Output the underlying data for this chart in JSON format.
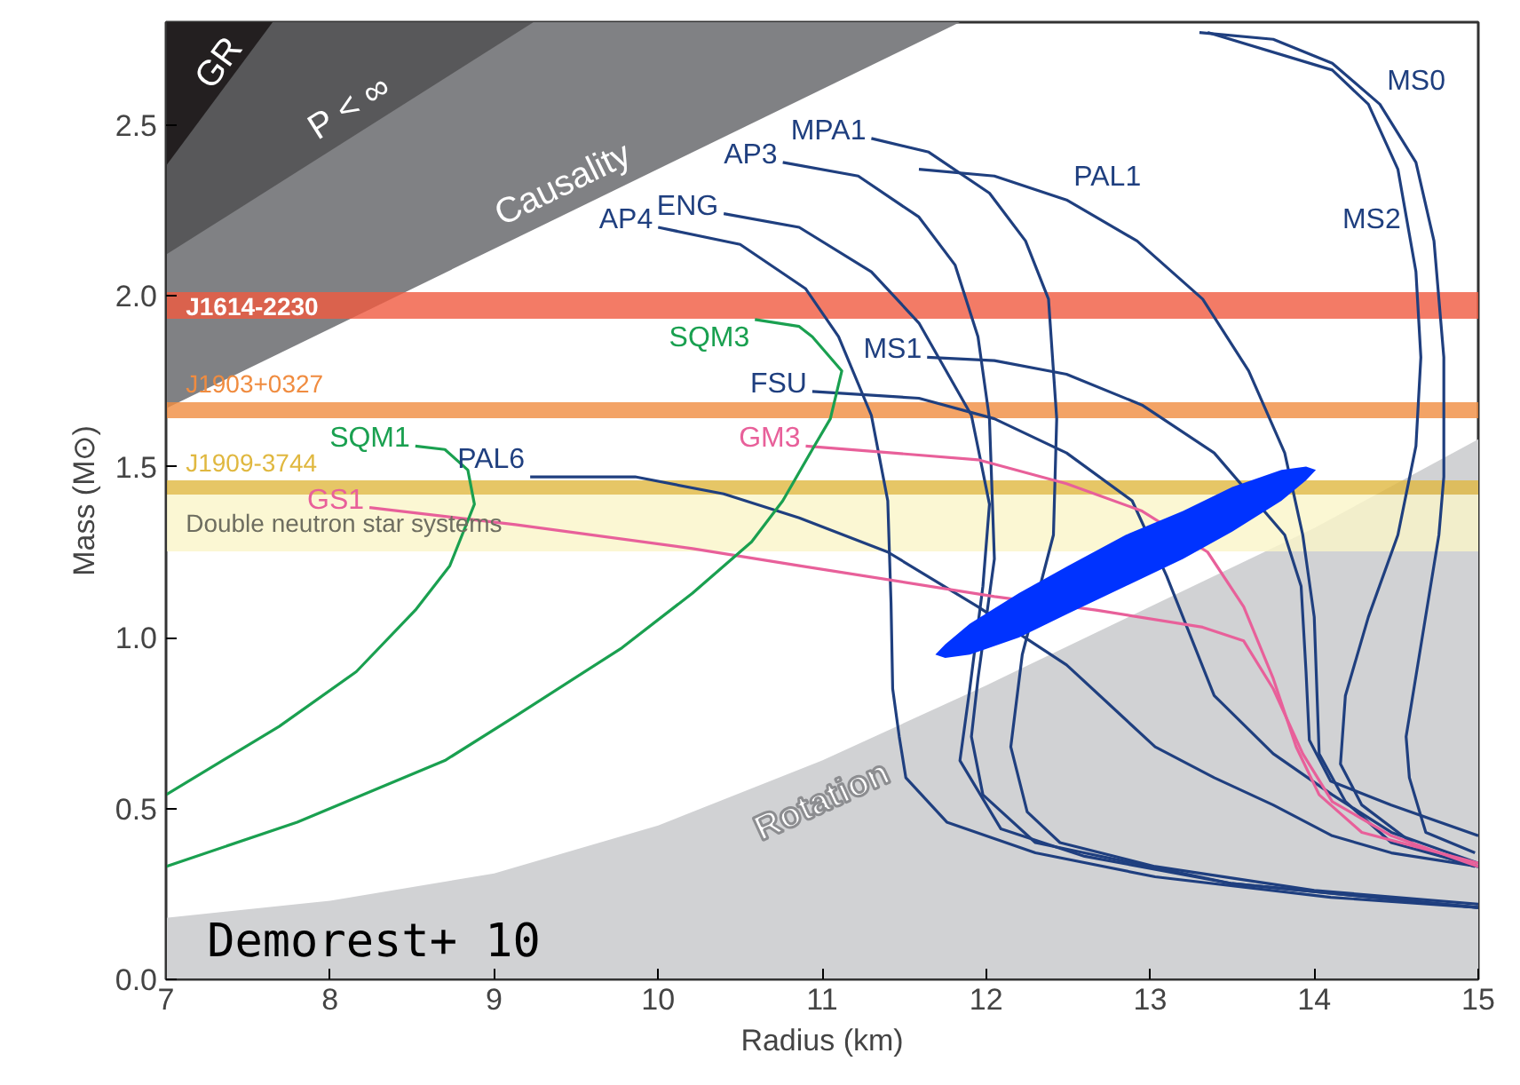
{
  "chart_data": {
    "type": "line",
    "xlabel": "Radius (km)",
    "ylabel": "Mass (M⊙)",
    "xlim": [
      7,
      15
    ],
    "ylim": [
      0,
      2.8
    ],
    "xticks": [
      7,
      8,
      9,
      10,
      11,
      12,
      13,
      14,
      15
    ],
    "yticks": [
      {
        "value": 0,
        "label": "0.0"
      },
      {
        "value": 0.5,
        "label": "0.5"
      },
      {
        "value": 1,
        "label": "1.0"
      },
      {
        "value": 1.5,
        "label": "1.5"
      },
      {
        "value": 2,
        "label": "2.0"
      },
      {
        "value": 2.5,
        "label": "2.5"
      }
    ],
    "series": [
      {
        "type": "area",
        "name": "Causality",
        "color": "#808184",
        "x": [
          7,
          11.84
        ],
        "values": [
          1.67,
          2.8
        ]
      },
      {
        "type": "area",
        "name": "P < ∞",
        "color": "#58585a",
        "x": [
          7,
          9.24
        ],
        "values": [
          2.12,
          2.8
        ]
      },
      {
        "type": "area",
        "name": "GR",
        "color": "#231f20",
        "x": [
          7,
          7.65
        ],
        "values": [
          2.38,
          2.8
        ]
      },
      {
        "type": "area",
        "name": "Rotation",
        "color": "#d1d2d4",
        "x": [
          7,
          8,
          9,
          10,
          11,
          12,
          13,
          14,
          15
        ],
        "values": [
          0.18,
          0.23,
          0.31,
          0.45,
          0.64,
          0.86,
          1.09,
          1.32,
          1.58
        ]
      },
      {
        "color": "#1f3f7f",
        "x": [
          10.0,
          10.5,
          10.9,
          11.1,
          11.3,
          11.4,
          11.42,
          11.43,
          11.47,
          11.51,
          11.76,
          12.3,
          13.03,
          14.1,
          15
        ],
        "values": [
          2.2,
          2.15,
          2.02,
          1.88,
          1.65,
          1.4,
          1.1,
          0.85,
          0.71,
          0.59,
          0.46,
          0.37,
          0.3,
          0.24,
          0.21
        ]
      },
      {
        "color": "#1f3f7f",
        "x": [
          10.4,
          10.86,
          11.3,
          11.59,
          11.91,
          12.02,
          11.98,
          11.9,
          11.84,
          12.09,
          12.6,
          13.5,
          15
        ],
        "values": [
          2.24,
          2.2,
          2.07,
          1.92,
          1.65,
          1.39,
          1.15,
          0.85,
          0.64,
          0.44,
          0.36,
          0.28,
          0.21
        ]
      },
      {
        "color": "#1f3f7f",
        "x": [
          10.76,
          11.22,
          11.59,
          11.81,
          11.95,
          12.02,
          12.05,
          11.95,
          11.91,
          11.98,
          12.3,
          13.5,
          15
        ],
        "values": [
          2.39,
          2.35,
          2.23,
          2.09,
          1.88,
          1.64,
          1.23,
          0.88,
          0.71,
          0.54,
          0.4,
          0.28,
          0.21
        ]
      },
      {
        "color": "#1f3f7f",
        "x": [
          11.3,
          11.65,
          12.02,
          12.24,
          12.38,
          12.43,
          12.41,
          12.22,
          12.15,
          12.25,
          12.45,
          13.03,
          14,
          15
        ],
        "values": [
          2.46,
          2.42,
          2.3,
          2.16,
          1.99,
          1.64,
          1.3,
          0.95,
          0.68,
          0.49,
          0.4,
          0.33,
          0.26,
          0.22
        ]
      },
      {
        "color": "#1f3f7f",
        "x": [
          11.59,
          12.05,
          12.49,
          12.92,
          13.32,
          13.6,
          13.82,
          13.93,
          14.0,
          14.03,
          14.19,
          14.47,
          15
        ],
        "values": [
          2.37,
          2.35,
          2.28,
          2.16,
          1.99,
          1.78,
          1.54,
          1.3,
          1.06,
          0.66,
          0.52,
          0.4,
          0.33
        ]
      },
      {
        "color": "#1f3f7f",
        "x": [
          13.3,
          13.75,
          14.11,
          14.4,
          14.62,
          14.73,
          14.79,
          14.79,
          14.76,
          14.56,
          14.58,
          14.68,
          14.98
        ],
        "values": [
          2.77,
          2.75,
          2.68,
          2.56,
          2.39,
          2.16,
          1.82,
          1.47,
          1.3,
          0.71,
          0.59,
          0.43,
          0.37
        ]
      },
      {
        "color": "#1f3f7f",
        "x": [
          13.35,
          14.11,
          14.33,
          14.51,
          14.62,
          14.65,
          14.62,
          14.51,
          14.33,
          14.19,
          14.16,
          14.29,
          14.65,
          14.98
        ],
        "values": [
          2.77,
          2.66,
          2.56,
          2.37,
          2.07,
          1.82,
          1.56,
          1.3,
          1.06,
          0.83,
          0.63,
          0.51,
          0.38,
          0.33
        ]
      },
      {
        "color": "#1f3f7f",
        "x": [
          11.64,
          12.05,
          12.49,
          12.95,
          13.39,
          13.82,
          13.92,
          13.95,
          13.97,
          14.1,
          14.47,
          15
        ],
        "values": [
          1.82,
          1.81,
          1.77,
          1.68,
          1.54,
          1.3,
          1.15,
          0.9,
          0.7,
          0.58,
          0.51,
          0.42
        ]
      },
      {
        "color": "#1f3f7f",
        "x": [
          10.94,
          11.59,
          12.05,
          12.49,
          12.89,
          13.1,
          13.39,
          13.75,
          14.11,
          14.47,
          15
        ],
        "values": [
          1.72,
          1.7,
          1.64,
          1.54,
          1.4,
          1.18,
          0.83,
          0.66,
          0.54,
          0.43,
          0.34
        ]
      },
      {
        "color": "#1f3f7f",
        "x": [
          9.22,
          9.86,
          10.4,
          10.86,
          11.4,
          11.95,
          12.49,
          13.03,
          13.39,
          13.75,
          14.11,
          14.47,
          15
        ],
        "values": [
          1.47,
          1.47,
          1.42,
          1.35,
          1.25,
          1.09,
          0.92,
          0.68,
          0.59,
          0.51,
          0.42,
          0.37,
          0.33
        ]
      },
      {
        "color": "#e8609a",
        "x": [
          10.9,
          11.95,
          12.49,
          12.95,
          13.35,
          13.57,
          13.75,
          13.89,
          14.03,
          14.29,
          15
        ],
        "values": [
          1.56,
          1.52,
          1.45,
          1.37,
          1.25,
          1.09,
          0.88,
          0.68,
          0.54,
          0.43,
          0.34
        ]
      },
      {
        "color": "#e8609a",
        "x": [
          8.24,
          9.13,
          10.21,
          10.86,
          12.05,
          12.67,
          13.32,
          13.57,
          13.75,
          13.93,
          14.11,
          14.47,
          15
        ],
        "values": [
          1.38,
          1.33,
          1.26,
          1.21,
          1.12,
          1.08,
          1.03,
          0.99,
          0.85,
          0.66,
          0.52,
          0.42,
          0.33
        ]
      },
      {
        "color": "#1aa050",
        "x": [
          8.52,
          8.7,
          8.84,
          8.88,
          8.73,
          8.52,
          8.16,
          7.69,
          7.0
        ],
        "values": [
          1.56,
          1.55,
          1.49,
          1.39,
          1.21,
          1.08,
          0.9,
          0.74,
          0.54
        ]
      },
      {
        "color": "#1aa050",
        "x": [
          10.59,
          10.86,
          10.94,
          11.12,
          11.05,
          10.94,
          10.76,
          10.57,
          10.21,
          9.78,
          9.13,
          8.7,
          7.8,
          7.0
        ],
        "values": [
          1.93,
          1.91,
          1.88,
          1.78,
          1.64,
          1.55,
          1.4,
          1.28,
          1.13,
          0.97,
          0.77,
          0.64,
          0.46,
          0.33
        ]
      },
      {
        "type": "area",
        "color": "#0033ff",
        "x": [
          11.69,
          11.75,
          11.9,
          12.2,
          12.5,
          12.85,
          13.2,
          13.5,
          13.8,
          13.95,
          14.01,
          13.95,
          13.8,
          13.5,
          13.2,
          12.85,
          12.5,
          12.2,
          11.9,
          11.75
        ],
        "values": [
          0.95,
          0.98,
          1.04,
          1.13,
          1.21,
          1.3,
          1.37,
          1.44,
          1.49,
          1.5,
          1.49,
          1.46,
          1.4,
          1.31,
          1.23,
          1.15,
          1.07,
          1.0,
          0.95,
          0.94
        ]
      }
    ],
    "bands": [
      {
        "axis": "y",
        "from": 1.25,
        "to": 1.42,
        "label": "Double neutron star systems",
        "color": "#faf5c8"
      },
      {
        "axis": "y",
        "from": 1.42,
        "to": 1.46,
        "label": "J1909-3744",
        "color": "#e0b840"
      },
      {
        "axis": "y",
        "from": 1.64,
        "to": 1.69,
        "label": "J1903+0327",
        "color": "#f08c40"
      },
      {
        "axis": "y",
        "from": 1.93,
        "to": 2.01,
        "label": "J1614-2230",
        "color": "#f05a40"
      }
    ],
    "annotations": [
      {
        "text": "AP4",
        "x": 10.0,
        "y": 2.2
      },
      {
        "text": "ENG",
        "x": 10.4,
        "y": 2.24
      },
      {
        "text": "AP3",
        "x": 10.76,
        "y": 2.39
      },
      {
        "text": "MPA1",
        "x": 11.3,
        "y": 2.46
      },
      {
        "text": "PAL1",
        "x": 12.49,
        "y": 2.28
      },
      {
        "text": "MS0",
        "x": 14.4,
        "y": 2.56
      },
      {
        "text": "MS2",
        "x": 14.56,
        "y": 2.2
      },
      {
        "text": "MS1",
        "x": 11.64,
        "y": 1.82
      },
      {
        "text": "FSU",
        "x": 10.94,
        "y": 1.72
      },
      {
        "text": "PAL6",
        "x": 9.22,
        "y": 1.47
      },
      {
        "text": "GM3",
        "x": 10.9,
        "y": 1.56
      },
      {
        "text": "GS1",
        "x": 8.24,
        "y": 1.38
      },
      {
        "text": "SQM1",
        "x": 8.52,
        "y": 1.56
      },
      {
        "text": "SQM3",
        "x": 10.59,
        "y": 1.93
      },
      "Demorest+ 10"
    ]
  }
}
